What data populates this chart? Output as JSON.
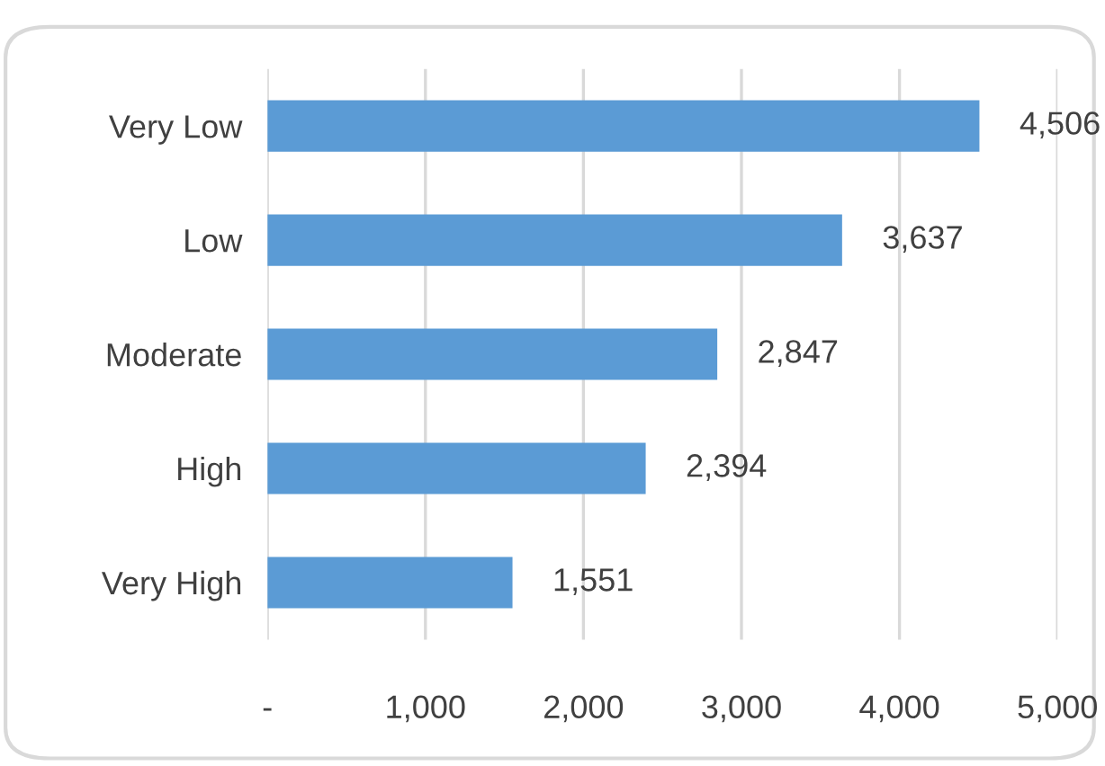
{
  "chart_data": {
    "type": "bar",
    "orientation": "horizontal",
    "categories": [
      "Very Low",
      "Low",
      "Moderate",
      "High",
      "Very High"
    ],
    "values": [
      4506,
      3637,
      2847,
      2394,
      1551
    ],
    "color": "#5b9bd5",
    "value_labels": [
      "4,506",
      "3,637",
      "2,847",
      "2,394",
      "1,551"
    ],
    "xlim": [
      0,
      5000
    ],
    "xticks": [
      {
        "value": 0,
        "label": "-"
      },
      {
        "value": 1000,
        "label": "1,000"
      },
      {
        "value": 2000,
        "label": "2,000"
      },
      {
        "value": 3000,
        "label": "3,000"
      },
      {
        "value": 4000,
        "label": "4,000"
      },
      {
        "value": 5000,
        "label": "5,000"
      }
    ],
    "grid": "x",
    "legend": false
  }
}
